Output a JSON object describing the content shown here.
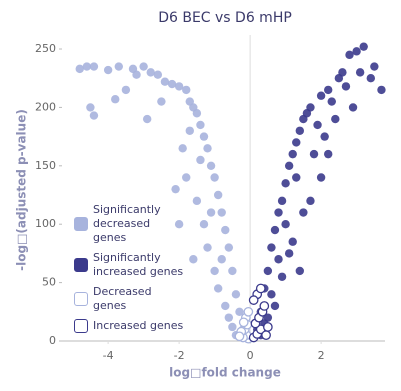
{
  "chart_data": {
    "type": "scatter",
    "title": "D6 BEC vs D6 mHP",
    "xlabel": "log□fold change",
    "ylabel": "-log□(adjusted p-value)",
    "xlim": [
      -5.3,
      3.8
    ],
    "ylim": [
      0,
      262
    ],
    "xticks": [
      -4,
      -2,
      0,
      2
    ],
    "yticks": [
      0,
      50,
      100,
      150,
      200,
      250
    ],
    "grid": false,
    "legend": "lower left",
    "series": [
      {
        "name": "Significantly decreased genes",
        "color": "#a7b3dd",
        "filled": true,
        "x": [
          -4.8,
          -4.6,
          -4.4,
          -4.0,
          -3.7,
          -3.3,
          -3.2,
          -3.0,
          -2.8,
          -2.6,
          -2.4,
          -2.2,
          -2.0,
          -1.8,
          -1.7,
          -1.6,
          -1.5,
          -1.4,
          -1.3,
          -1.2,
          -1.1,
          -1.0,
          -0.9,
          -0.8,
          -0.7,
          -0.6,
          -0.5,
          -0.4,
          -0.3,
          -0.2,
          -4.5,
          -4.4,
          -3.5,
          -3.8,
          -2.5,
          -2.9,
          -1.9,
          -2.1,
          -1.8,
          -1.5,
          -1.3,
          -1.2,
          -1.0,
          -0.9,
          -0.7,
          -0.6,
          -0.5,
          -1.1,
          -1.4,
          -0.8,
          -0.4,
          -2.0,
          -1.6,
          -1.7
        ],
        "y": [
          233,
          235,
          235,
          232,
          235,
          233,
          228,
          235,
          230,
          228,
          222,
          220,
          218,
          215,
          205,
          200,
          195,
          185,
          175,
          165,
          150,
          140,
          125,
          110,
          95,
          80,
          60,
          40,
          25,
          10,
          200,
          193,
          215,
          207,
          205,
          190,
          165,
          130,
          140,
          120,
          100,
          80,
          60,
          45,
          30,
          20,
          12,
          110,
          155,
          70,
          5,
          100,
          70,
          180
        ]
      },
      {
        "name": "Significantly increased genes",
        "color": "#3b3a8c",
        "filled": true,
        "x": [
          0.2,
          0.3,
          0.4,
          0.5,
          0.6,
          0.7,
          0.8,
          0.9,
          1.0,
          1.1,
          1.2,
          1.3,
          1.4,
          1.5,
          1.7,
          2.0,
          2.2,
          2.5,
          2.6,
          2.8,
          3.0,
          3.2,
          3.5,
          3.7,
          3.4,
          2.7,
          2.3,
          1.9,
          1.6,
          1.3,
          1.0,
          0.8,
          0.6,
          0.5,
          1.8,
          2.1,
          2.4,
          1.5,
          1.2,
          0.9,
          0.7,
          0.4,
          2.0,
          1.7,
          1.1,
          2.9,
          3.1,
          1.4,
          0.3,
          2.2
        ],
        "y": [
          10,
          25,
          45,
          60,
          80,
          95,
          110,
          120,
          135,
          150,
          160,
          170,
          180,
          190,
          200,
          210,
          215,
          225,
          230,
          245,
          248,
          252,
          235,
          215,
          225,
          218,
          205,
          185,
          195,
          140,
          100,
          70,
          40,
          20,
          160,
          175,
          190,
          110,
          85,
          55,
          30,
          15,
          140,
          120,
          75,
          200,
          230,
          60,
          5,
          160
        ]
      },
      {
        "name": "Decreased genes",
        "color": "#a7b3dd",
        "filled": false,
        "x": [
          -0.05,
          -0.1,
          -0.15,
          -0.2,
          -0.25,
          -0.08,
          -0.12,
          -0.3,
          -0.18,
          -0.05
        ],
        "y": [
          2,
          5,
          10,
          3,
          8,
          14,
          20,
          4,
          16,
          25
        ]
      },
      {
        "name": "Increased genes",
        "color": "#3b3a8c",
        "filled": false,
        "x": [
          0.1,
          0.2,
          0.3,
          0.15,
          0.25,
          0.35,
          0.4,
          0.2,
          0.3,
          0.45,
          0.5,
          0.1
        ],
        "y": [
          3,
          6,
          10,
          15,
          20,
          25,
          30,
          40,
          45,
          5,
          12,
          35
        ]
      }
    ]
  }
}
